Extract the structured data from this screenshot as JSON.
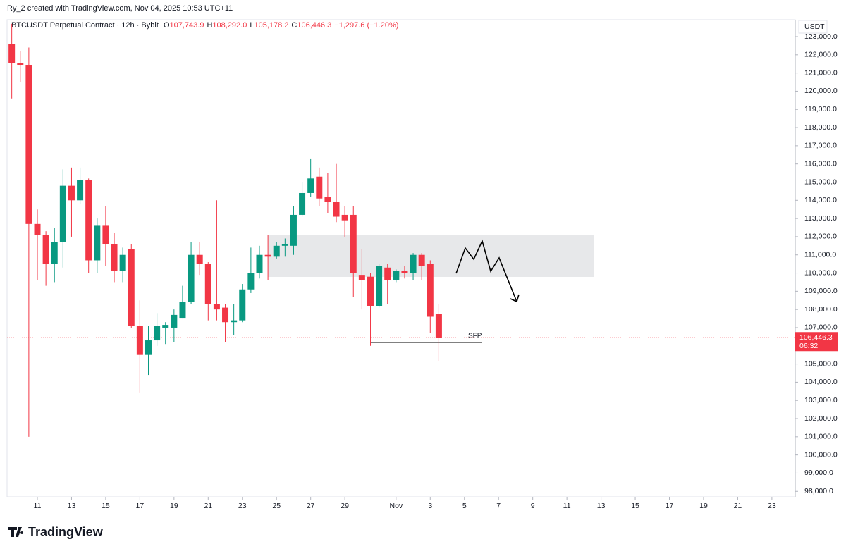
{
  "credit": "Ry_2 created with TradingView.com, Nov 04, 2025 10:53 UTC+11",
  "brand": "TradingView",
  "chart_data": {
    "type": "candlestick",
    "title": "BTCUSDT Perpetual Contract · 12h · Bybit",
    "legend": [
      {
        "key": "O",
        "value": "107,743.9"
      },
      {
        "key": "H",
        "value": "108,292.0"
      },
      {
        "key": "L",
        "value": "105,178.2"
      },
      {
        "key": "C",
        "value": "106,446.3"
      }
    ],
    "change": "−1,297.6 (−1.20%)",
    "currency": "USDT",
    "up_color": "#089981",
    "down_color": "#f23645",
    "open": [
      122600,
      121550,
      121450,
      112700,
      112100,
      110500,
      111700,
      114800,
      114000,
      115100,
      110700,
      112600,
      111600,
      110100,
      111300,
      107100,
      105500,
      106300,
      107000,
      107000,
      107500,
      108400,
      111000,
      110500,
      108300,
      108100,
      107300,
      107400,
      109100,
      110000,
      111000,
      110900,
      111500,
      111500,
      113200,
      114400,
      115300,
      114200,
      113900,
      113200,
      113200,
      109900,
      109800,
      108200,
      110300,
      109600,
      110100,
      110000,
      111000,
      110500,
      107743.9
    ],
    "high": [
      123700,
      122200,
      122400,
      113500,
      112300,
      112500,
      115700,
      115800,
      115800,
      115200,
      113000,
      113700,
      112200,
      111400,
      111600,
      108500,
      107100,
      107800,
      107300,
      108000,
      109300,
      111700,
      111700,
      110600,
      114000,
      108300,
      108300,
      109400,
      111400,
      111500,
      112100,
      111700,
      111900,
      113700,
      115000,
      116300,
      115800,
      115500,
      116000,
      113700,
      113700,
      111300,
      110000,
      110500,
      110500,
      110200,
      110400,
      111100,
      111100,
      110700,
      108292.0
    ],
    "low": [
      119600,
      120500,
      101000,
      109600,
      109300,
      109500,
      110300,
      112000,
      113800,
      110000,
      110000,
      110400,
      109500,
      109500,
      107000,
      103400,
      104400,
      106000,
      106100,
      106200,
      107500,
      108300,
      109900,
      107400,
      107400,
      106200,
      106600,
      107300,
      108900,
      109700,
      109600,
      110800,
      110900,
      111000,
      113100,
      114200,
      113700,
      113300,
      112800,
      112000,
      108700,
      108000,
      106000,
      108100,
      108300,
      109500,
      109700,
      109600,
      109600,
      106700,
      105178.2
    ],
    "close": [
      121550,
      121450,
      112700,
      112100,
      110500,
      111700,
      114800,
      114000,
      115100,
      110700,
      112600,
      111600,
      110100,
      111000,
      107100,
      105500,
      106300,
      107100,
      107150,
      107700,
      108400,
      111000,
      110500,
      108300,
      108000,
      107300,
      107400,
      109100,
      110000,
      111000,
      110900,
      111500,
      111600,
      113200,
      114400,
      115200,
      114100,
      113900,
      113100,
      112900,
      110000,
      109600,
      108200,
      110400,
      109600,
      110100,
      110000,
      111000,
      110400,
      107600,
      106446.3
    ],
    "last_price": {
      "value": 106446.3,
      "label": "106,446.3"
    },
    "countdown": "06:32",
    "annotation": "SFP",
    "ylim": [
      97700,
      123930
    ],
    "yticks": [
      {
        "value": 98000,
        "label": "98,000.0"
      },
      {
        "value": 99000,
        "label": "99,000.0"
      },
      {
        "value": 100000,
        "label": "100,000.0"
      },
      {
        "value": 101000,
        "label": "101,000.0"
      },
      {
        "value": 102000,
        "label": "102,000.0"
      },
      {
        "value": 103000,
        "label": "103,000.0"
      },
      {
        "value": 104000,
        "label": "104,000.0"
      },
      {
        "value": 105000,
        "label": "105,000.0"
      },
      {
        "value": 106000,
        "label": "106,000.0"
      },
      {
        "value": 107000,
        "label": "107,000.0"
      },
      {
        "value": 108000,
        "label": "108,000.0"
      },
      {
        "value": 109000,
        "label": "109,000.0"
      },
      {
        "value": 110000,
        "label": "110,000.0"
      },
      {
        "value": 111000,
        "label": "111,000.0"
      },
      {
        "value": 112000,
        "label": "112,000.0"
      },
      {
        "value": 113000,
        "label": "113,000.0"
      },
      {
        "value": 114000,
        "label": "114,000.0"
      },
      {
        "value": 115000,
        "label": "115,000.0"
      },
      {
        "value": 116000,
        "label": "116,000.0"
      },
      {
        "value": 117000,
        "label": "117,000.0"
      },
      {
        "value": 118000,
        "label": "118,000.0"
      },
      {
        "value": 119000,
        "label": "119,000.0"
      },
      {
        "value": 120000,
        "label": "120,000.0"
      },
      {
        "value": 121000,
        "label": "121,000.0"
      },
      {
        "value": 122000,
        "label": "122,000.0"
      },
      {
        "value": 123000,
        "label": "123,000.0"
      }
    ],
    "xticks": [
      {
        "value": "Oct 11",
        "label": "11"
      },
      {
        "value": "Oct 13",
        "label": "13"
      },
      {
        "value": "Oct 15",
        "label": "15"
      },
      {
        "value": "Oct 17",
        "label": "17"
      },
      {
        "value": "Oct 19",
        "label": "19"
      },
      {
        "value": "Oct 21",
        "label": "21"
      },
      {
        "value": "Oct 23",
        "label": "23"
      },
      {
        "value": "Oct 25",
        "label": "25"
      },
      {
        "value": "Oct 27",
        "label": "27"
      },
      {
        "value": "Oct 29",
        "label": "29"
      },
      {
        "value": "Nov 1",
        "label": "Nov"
      },
      {
        "value": "Nov 3",
        "label": "3"
      },
      {
        "value": "Nov 5",
        "label": "5"
      },
      {
        "value": "Nov 7",
        "label": "7"
      },
      {
        "value": "Nov 9",
        "label": "9"
      },
      {
        "value": "Nov 11",
        "label": "11"
      },
      {
        "value": "Nov 13",
        "label": "13"
      },
      {
        "value": "Nov 15",
        "label": "15"
      },
      {
        "value": "Nov 17",
        "label": "17"
      },
      {
        "value": "Nov 19",
        "label": "19"
      },
      {
        "value": "Nov 21",
        "label": "21"
      },
      {
        "value": "Nov 23",
        "label": "23"
      }
    ]
  }
}
